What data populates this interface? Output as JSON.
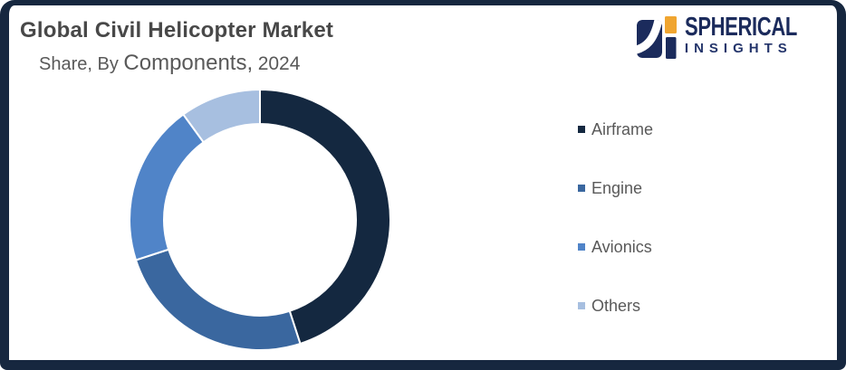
{
  "header": {
    "title": "Global Civil Helicopter Market",
    "subtitle_share_by": "Share, By",
    "subtitle_components": "Components,",
    "subtitle_year": "2024"
  },
  "logo": {
    "name": "SPHERICAL",
    "tagline": "INSIGHTS",
    "navy": "#1B2B5C",
    "orange": "#F0A530"
  },
  "frame": {
    "border_color": "#16273F",
    "background": "#FFFFFF"
  },
  "chart_data": {
    "type": "pie",
    "donut": true,
    "title": "Global Civil Helicopter Market Share, By Components, 2024",
    "unit": "%",
    "start_angle_deg": 0,
    "direction": "clockwise",
    "legend_position": "right",
    "separator_color": "#FFFFFF",
    "segments": [
      {
        "label": "Airframe",
        "value": 45,
        "color": "#142840"
      },
      {
        "label": "Engine",
        "value": 25,
        "color": "#3A679F"
      },
      {
        "label": "Avionics",
        "value": 20,
        "color": "#5084C8"
      },
      {
        "label": "Others",
        "value": 10,
        "color": "#A7BFE0"
      }
    ]
  }
}
